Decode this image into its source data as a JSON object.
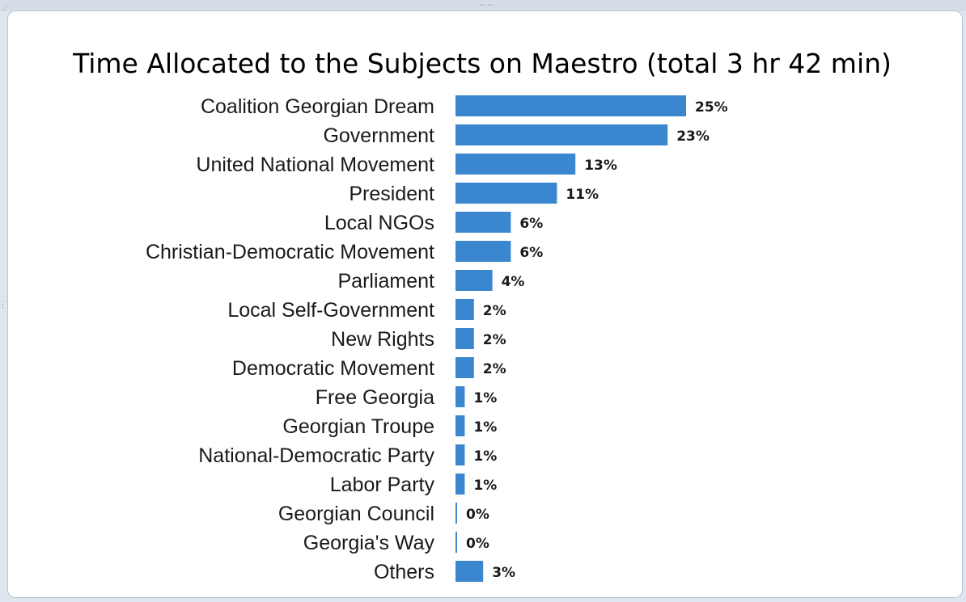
{
  "chart_data": {
    "type": "bar",
    "orientation": "horizontal",
    "title": "Time Allocated to the Subjects on Maestro (total 3 hr 42 min)",
    "xlabel": "",
    "ylabel": "",
    "grid": false,
    "bar_color": "#3b87cf",
    "categories": [
      "Coalition Georgian Dream",
      "Government",
      "United National Movement",
      "President",
      "Local NGOs",
      "Christian-Democratic Movement",
      "Parliament",
      "Local Self-Government",
      "New Rights",
      "Democratic Movement",
      "Free Georgia",
      "Georgian Troupe",
      "National-Democratic Party",
      "Labor Party",
      "Georgian Council",
      "Georgia's Way",
      "Others"
    ],
    "values": [
      25,
      23,
      13,
      11,
      6,
      6,
      4,
      2,
      2,
      2,
      1,
      1,
      1,
      1,
      0,
      0,
      3
    ],
    "value_labels": [
      "25%",
      "23%",
      "13%",
      "11%",
      "6%",
      "6%",
      "4%",
      "2%",
      "2%",
      "2%",
      "1%",
      "1%",
      "1%",
      "1%",
      "0%",
      "0%",
      "3%"
    ]
  }
}
